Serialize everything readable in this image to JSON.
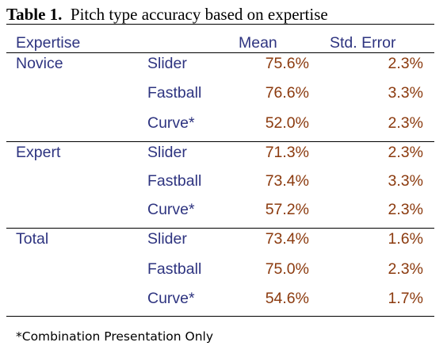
{
  "caption": {
    "label": "Table 1.",
    "text": "Pitch type accuracy based on expertise"
  },
  "headers": {
    "expertise": "Expertise",
    "mean": "Mean",
    "error": "Std. Error"
  },
  "groups": [
    {
      "name": "Novice",
      "rows": [
        {
          "type": "Slider",
          "mean": "75.6%",
          "error": "2.3%"
        },
        {
          "type": "Fastball",
          "mean": "76.6%",
          "error": "3.3%"
        },
        {
          "type": "Curve*",
          "mean": "52.0%",
          "error": "2.3%"
        }
      ]
    },
    {
      "name": "Expert",
      "rows": [
        {
          "type": "Slider",
          "mean": "71.3%",
          "error": "2.3%"
        },
        {
          "type": "Fastball",
          "mean": "73.4%",
          "error": "3.3%"
        },
        {
          "type": "Curve*",
          "mean": "57.2%",
          "error": "2.3%"
        }
      ]
    },
    {
      "name": "Total",
      "rows": [
        {
          "type": "Slider",
          "mean": "73.4%",
          "error": "1.6%"
        },
        {
          "type": "Fastball",
          "mean": "75.0%",
          "error": "2.3%"
        },
        {
          "type": "Curve*",
          "mean": "54.6%",
          "error": "1.7%"
        }
      ]
    }
  ],
  "footnote": "*Combination Presentation Only"
}
